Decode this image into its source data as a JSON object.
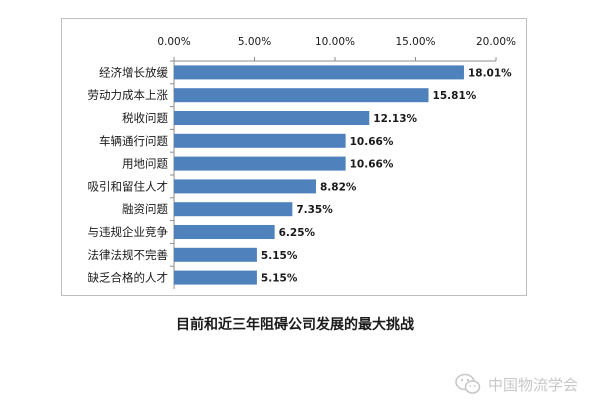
{
  "chart_data": {
    "type": "bar",
    "orientation": "horizontal",
    "categories": [
      "经济增长放缓",
      "劳动力成本上涨",
      "税收问题",
      "车辆通行问题",
      "用地问题",
      "吸引和留住人才",
      "融资问题",
      "与违规企业竞争",
      "法律法规不完善",
      "缺乏合格的人才"
    ],
    "values": [
      18.01,
      15.81,
      12.13,
      10.66,
      10.66,
      8.82,
      7.35,
      6.25,
      5.15,
      5.15
    ],
    "data_labels": [
      "18.01%",
      "15.81%",
      "12.13%",
      "10.66%",
      "10.66%",
      "8.82%",
      "7.35%",
      "6.25%",
      "5.15%",
      "5.15%"
    ],
    "x_ticks": [
      "0.00%",
      "5.00%",
      "10.00%",
      "15.00%",
      "20.00%"
    ],
    "xlim": [
      0,
      20
    ],
    "x_axis_position": "top",
    "grid": false,
    "legend": "none",
    "title": "",
    "bar_color": "#4f81bd"
  },
  "caption": "目前和近三年阻碍公司发展的最大挑战",
  "watermark": {
    "text": "中国物流学会",
    "icon": "wechat-icon"
  }
}
